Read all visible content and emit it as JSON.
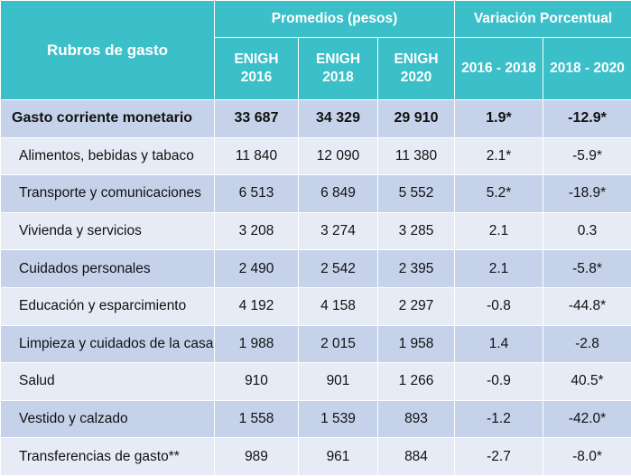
{
  "header": {
    "rubros": "Rubros de gasto",
    "promedios": "Promedios (pesos)",
    "variacion": "Variación Porcentual",
    "col_2016": [
      "ENIGH",
      "2016"
    ],
    "col_2018": [
      "ENIGH",
      "2018"
    ],
    "col_2020": [
      "ENIGH",
      "2020"
    ],
    "var_1618": "2016 - 2018",
    "var_1820": "2018 - 2020"
  },
  "rows": [
    {
      "label": "Gasto corriente monetario",
      "v2016": "33 687",
      "v2018": "34 329",
      "v2020": "29 910",
      "var1": "1.9*",
      "var2": "-12.9*"
    },
    {
      "label": "Alimentos, bebidas y tabaco",
      "v2016": "11 840",
      "v2018": "12 090",
      "v2020": "11 380",
      "var1": "2.1*",
      "var2": "-5.9*"
    },
    {
      "label": "Transporte y comunicaciones",
      "v2016": "6 513",
      "v2018": "6 849",
      "v2020": "5 552",
      "var1": "5.2*",
      "var2": "-18.9*"
    },
    {
      "label": "Vivienda y servicios",
      "v2016": "3 208",
      "v2018": "3 274",
      "v2020": "3 285",
      "var1": "2.1",
      "var2": "0.3"
    },
    {
      "label": "Cuidados personales",
      "v2016": "2 490",
      "v2018": "2 542",
      "v2020": "2 395",
      "var1": "2.1",
      "var2": "-5.8*"
    },
    {
      "label": "Educación y esparcimiento",
      "v2016": "4 192",
      "v2018": "4 158",
      "v2020": "2 297",
      "var1": "-0.8",
      "var2": "-44.8*"
    },
    {
      "label": "Limpieza y cuidados de la casa",
      "v2016": "1 988",
      "v2018": "2 015",
      "v2020": "1 958",
      "var1": "1.4",
      "var2": "-2.8"
    },
    {
      "label": "Salud",
      "v2016": "910",
      "v2018": "901",
      "v2020": "1 266",
      "var1": "-0.9",
      "var2": "40.5*"
    },
    {
      "label": "Vestido y calzado",
      "v2016": "1 558",
      "v2018": "1 539",
      "v2020": "893",
      "var1": "-1.2",
      "var2": "-42.0*"
    },
    {
      "label": "Transferencias de gasto**",
      "v2016": "989",
      "v2018": "961",
      "v2020": "884",
      "var1": "-2.7",
      "var2": "-8.0*"
    }
  ]
}
